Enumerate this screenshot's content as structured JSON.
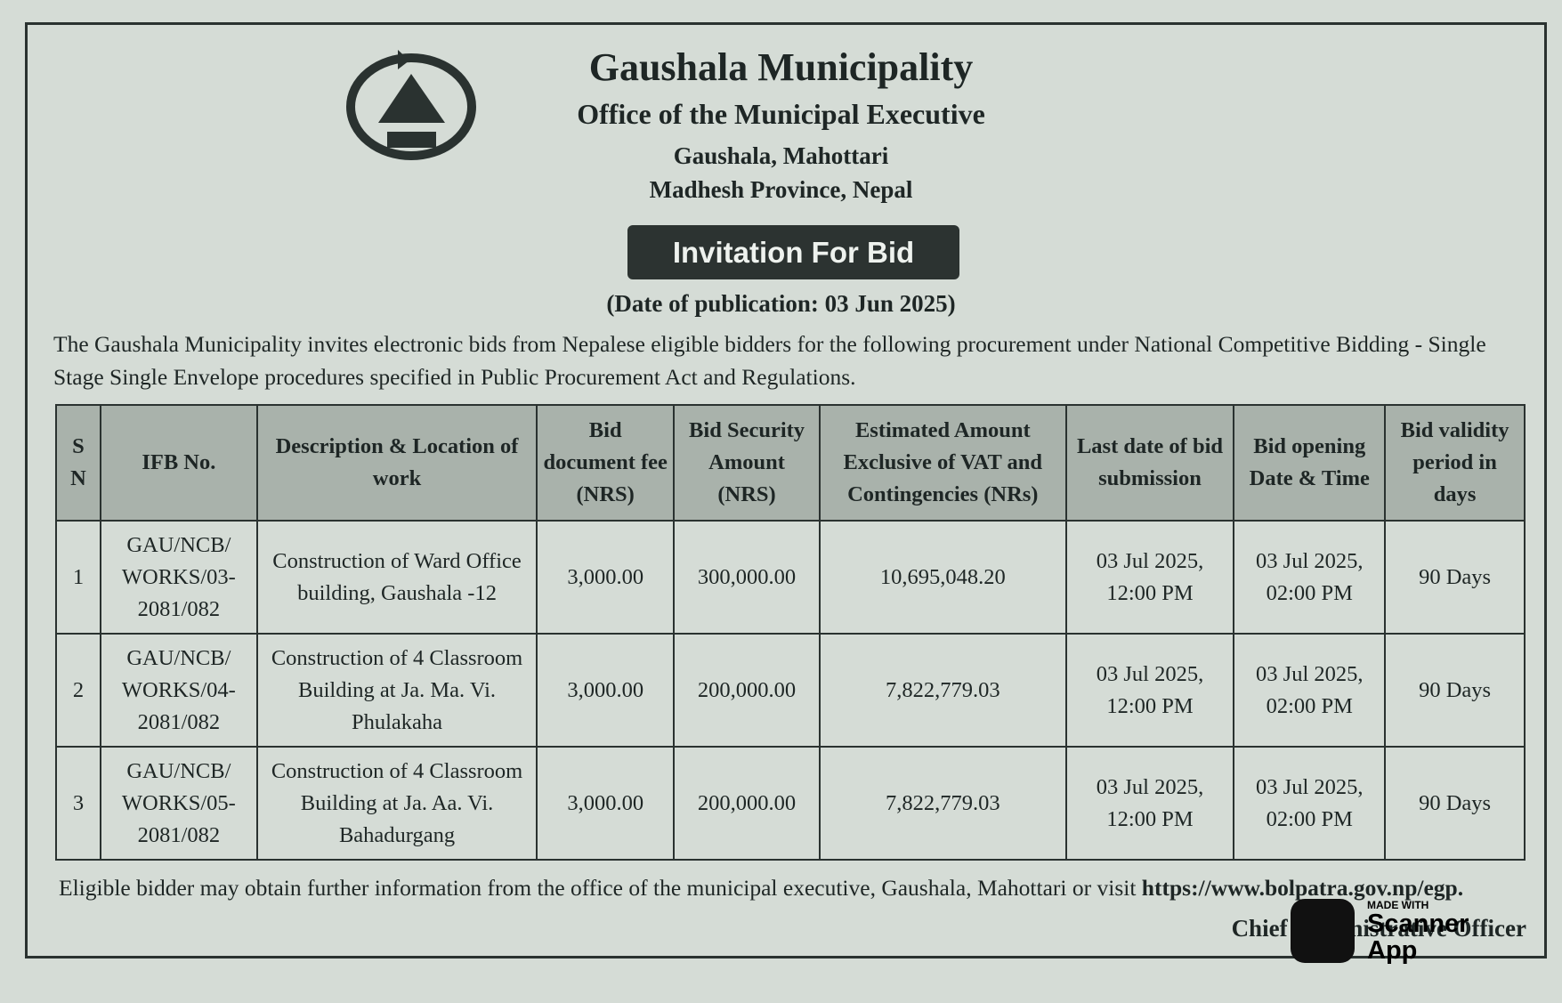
{
  "header": {
    "title": "Gaushala Municipality",
    "office": "Office of the Municipal Executive",
    "location": "Gaushala, Mahottari",
    "province": "Madhesh Province, Nepal"
  },
  "badge": "Invitation For Bid",
  "publication_date": "(Date of publication: 03 Jun 2025)",
  "intro": "The Gaushala Municipality invites electronic bids from Nepalese eligible bidders for the following procurement under National Competitive Bidding - Single Stage Single Envelope procedures specified in Public Procurement Act and Regulations.",
  "table": {
    "headers": [
      "S N",
      "IFB No.",
      "Description & Location of work",
      "Bid document fee (NRS)",
      "Bid Security Amount (NRS)",
      "Estimated Amount Exclusive of VAT and Contingencies (NRs)",
      "Last date of bid submission",
      "Bid opening Date & Time",
      "Bid validity period in days"
    ],
    "rows": [
      [
        "1",
        "GAU/NCB/ WORKS/03- 2081/082",
        "Construction of Ward Office building, Gaushala -12",
        "3,000.00",
        "300,000.00",
        "10,695,048.20",
        "03 Jul 2025, 12:00 PM",
        "03 Jul 2025, 02:00 PM",
        "90 Days"
      ],
      [
        "2",
        "GAU/NCB/ WORKS/04- 2081/082",
        "Construction of 4 Classroom Building at Ja. Ma. Vi. Phulakaha",
        "3,000.00",
        "200,000.00",
        "7,822,779.03",
        "03 Jul 2025, 12:00 PM",
        "03 Jul 2025, 02:00 PM",
        "90 Days"
      ],
      [
        "3",
        "GAU/NCB/ WORKS/05- 2081/082",
        "Construction of 4 Classroom Building at Ja. Aa. Vi. Bahadurgang",
        "3,000.00",
        "200,000.00",
        "7,822,779.03",
        "03 Jul 2025, 12:00 PM",
        "03 Jul 2025, 02:00 PM",
        "90 Days"
      ]
    ]
  },
  "footer": {
    "text": "Eligible bidder may obtain further information from the office of the municipal executive, Gaushala, Mahottari or visit ",
    "link": "https://www.bolpatra.gov.np/egp.",
    "signature": "Chief Administrative Officer"
  },
  "watermark": {
    "made_with": "MADE WITH",
    "name_1": "Scanner",
    "name_2": "App"
  }
}
